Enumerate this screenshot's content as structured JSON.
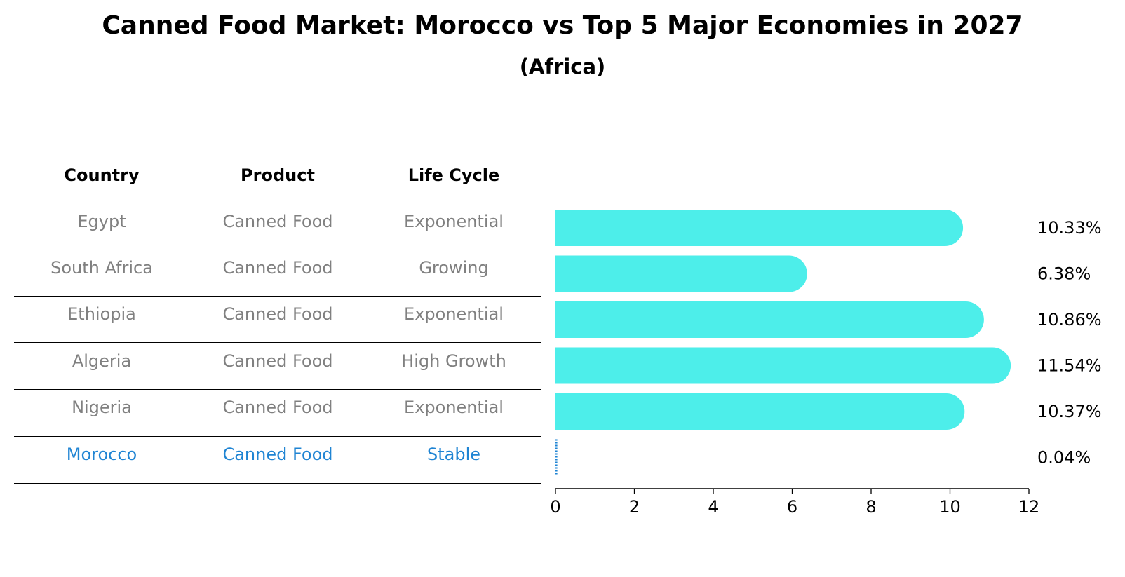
{
  "title": "Canned Food Market: Morocco vs Top 5 Major Economies in 2027",
  "subtitle": "(Africa)",
  "table": {
    "headers": [
      "Country",
      "Product",
      "Life Cycle"
    ],
    "rows": [
      [
        "Egypt",
        "Canned Food",
        "Exponential"
      ],
      [
        "South Africa",
        "Canned Food",
        "Growing"
      ],
      [
        "Ethiopia",
        "Canned Food",
        "Exponential"
      ],
      [
        "Algeria",
        "Canned Food",
        "High Growth"
      ],
      [
        "Nigeria",
        "Canned Food",
        "Exponential"
      ],
      [
        "Morocco",
        "Canned Food",
        "Stable"
      ]
    ],
    "highlight_row": 5
  },
  "colors": {
    "bar": "#4deeea",
    "highlight": "#1f84d3",
    "muted_text": "#808080"
  },
  "chart_data": {
    "type": "bar",
    "orientation": "horizontal",
    "categories": [
      "Egypt",
      "South Africa",
      "Ethiopia",
      "Algeria",
      "Nigeria",
      "Morocco"
    ],
    "values": [
      10.33,
      6.38,
      10.86,
      11.54,
      10.37,
      0.04
    ],
    "value_labels": [
      "10.33%",
      "6.38%",
      "10.86%",
      "11.54%",
      "10.37%",
      "0.04%"
    ],
    "xlim": [
      0,
      12
    ],
    "xticks": [
      0,
      2,
      4,
      6,
      8,
      10,
      12
    ],
    "grid": false
  }
}
